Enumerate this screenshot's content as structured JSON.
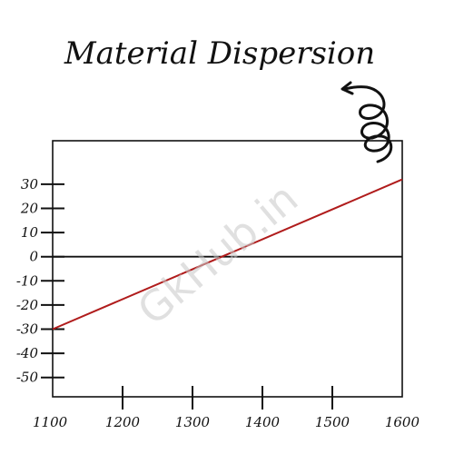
{
  "chart_data": {
    "type": "line",
    "title": "Material Dispersion",
    "xlabel": "",
    "ylabel": "",
    "xlim": [
      1100,
      1600
    ],
    "ylim": [
      -58,
      48
    ],
    "x_ticks": [
      1100,
      1200,
      1300,
      1400,
      1500,
      1600
    ],
    "y_ticks": [
      30,
      20,
      10,
      0,
      -10,
      -20,
      -30,
      -40,
      -50
    ],
    "grid": false,
    "legend": "none",
    "zero_line": true,
    "series": [
      {
        "color": "#b01c1c",
        "points": [
          {
            "x": 1100,
            "y": -30
          },
          {
            "x": 1600,
            "y": 32
          }
        ]
      }
    ]
  },
  "watermark": "GkHub.in",
  "colors": {
    "axis": "#111111",
    "line": "#b01c1c",
    "watermark": "#c8c8c8"
  },
  "decorations": {
    "arrow_icon": "curly-arrow-icon"
  }
}
